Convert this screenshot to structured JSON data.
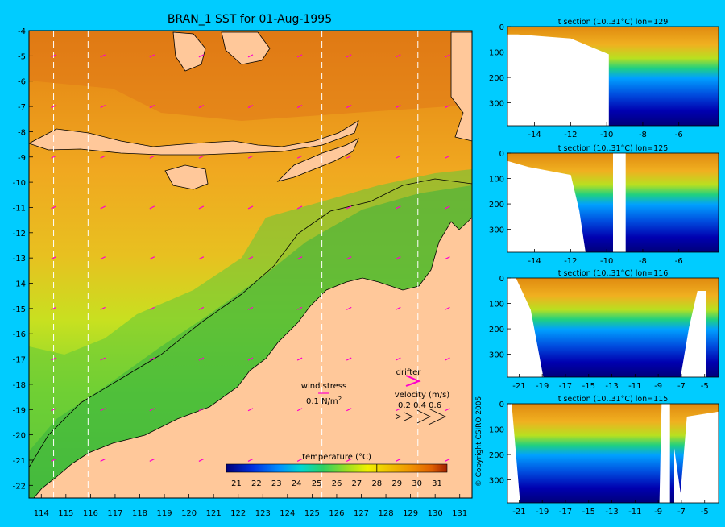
{
  "main_map": {
    "title": "BRAN_1 SST for 01-Aug-1995",
    "lat_ticks": [
      "-4",
      "-5",
      "-6",
      "-7",
      "-8",
      "-9",
      "-10",
      "-11",
      "-12",
      "-13",
      "-14",
      "-15",
      "-16",
      "-17",
      "-18",
      "-19",
      "-20",
      "-21",
      "-22"
    ],
    "lon_ticks": [
      "114",
      "115",
      "116",
      "117",
      "118",
      "119",
      "120",
      "121",
      "122",
      "123",
      "124",
      "125",
      "126",
      "127",
      "128",
      "129",
      "130",
      "131"
    ],
    "section_lons": [
      114.5,
      115.9,
      125.4,
      129.3
    ],
    "wind_stress_label": "wind stress",
    "wind_stress_scale": "0.1 N/m",
    "wind_stress_sup": "2",
    "drifter_label": "drifter",
    "velocity_label": "velocity (m/s)",
    "velocity_ticks": "0.2 0.4 0.6",
    "colorbar_title": "temperature (°C)",
    "colorbar_ticks": [
      "21",
      "22",
      "23",
      "24",
      "25",
      "26",
      "27",
      "28",
      "29",
      "30",
      "31"
    ],
    "colors": {
      "land": "#ffc89a",
      "background": "#00ccff",
      "wind_arrow": "#ff00cc",
      "colormap": [
        "#00007a",
        "#0000c8",
        "#0050ff",
        "#00a0ff",
        "#00e0c0",
        "#30d060",
        "#90e020",
        "#e8f000",
        "#f0c000",
        "#f09000",
        "#e06000",
        "#a02000"
      ]
    }
  },
  "sections": [
    {
      "title": "t section (10..31°C) lon=129",
      "x_ticks": [
        "-14",
        "-12",
        "-10",
        "-8",
        "-6"
      ],
      "y_ticks": [
        "0",
        "100",
        "200",
        "300"
      ]
    },
    {
      "title": "t section (10..31°C) lon=125",
      "x_ticks": [
        "-14",
        "-12",
        "-10",
        "-8",
        "-6"
      ],
      "y_ticks": [
        "0",
        "100",
        "200",
        "300"
      ]
    },
    {
      "title": "t section (10..31°C) lon=116",
      "x_ticks": [
        "-21",
        "-19",
        "-17",
        "-15",
        "-13",
        "-11",
        "-9",
        "-7",
        "-5"
      ],
      "y_ticks": [
        "0",
        "100",
        "200",
        "300"
      ]
    },
    {
      "title": "t section (10..31°C) lon=115",
      "x_ticks": [
        "-21",
        "-19",
        "-17",
        "-15",
        "-13",
        "-11",
        "-9",
        "-7",
        "-5"
      ],
      "y_ticks": [
        "0",
        "100",
        "200",
        "300"
      ]
    }
  ],
  "copyright": "© Copyright CSIRO 2005",
  "chart_data": {
    "type": "heatmap",
    "title": "BRAN_1 SST for 01-Aug-1995",
    "xlim": [
      113.5,
      131.5
    ],
    "ylim": [
      -22.5,
      -4
    ],
    "colorbar_range": [
      20.5,
      31.5
    ],
    "colorbar_label": "temperature (°C)"
  }
}
